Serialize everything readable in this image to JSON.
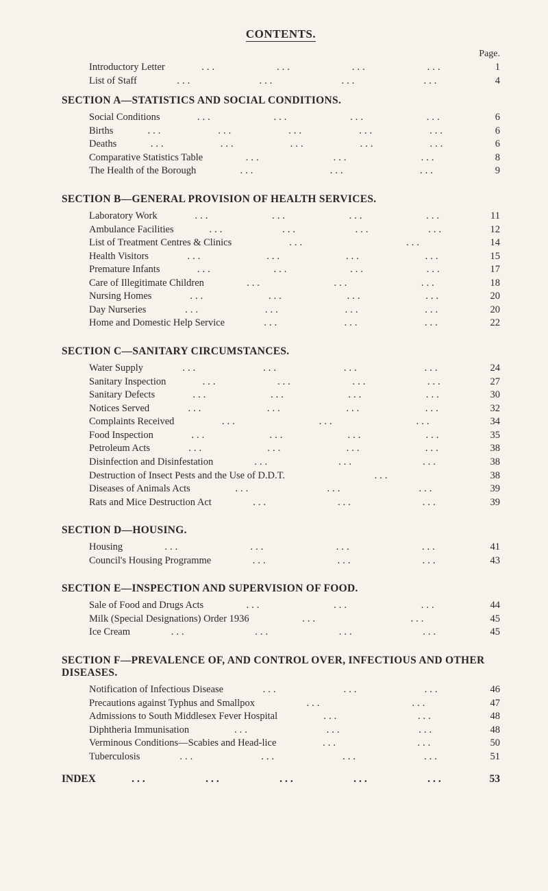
{
  "title": "CONTENTS.",
  "page_header": "Page.",
  "dots3": "...",
  "intro": [
    {
      "label": "Introductory Letter",
      "page": "1",
      "dots": 4
    },
    {
      "label": "List of Staff",
      "page": "4",
      "dots": 4
    }
  ],
  "sections": [
    {
      "heading": "SECTION A—STATISTICS AND SOCIAL CONDITIONS.",
      "items": [
        {
          "label": "Social Conditions",
          "page": "6",
          "dots": 4
        },
        {
          "label": "Births",
          "page": "6",
          "dots": 5
        },
        {
          "label": "Deaths",
          "page": "6",
          "dots": 5
        },
        {
          "label": "Comparative Statistics Table",
          "page": "8",
          "dots": 3
        },
        {
          "label": "The Health of the Borough",
          "page": "9",
          "dots": 3
        }
      ]
    },
    {
      "heading": "SECTION B—GENERAL PROVISION OF HEALTH SERVICES.",
      "items": [
        {
          "label": "Laboratory Work",
          "page": "11",
          "dots": 4
        },
        {
          "label": "Ambulance Facilities",
          "page": "12",
          "dots": 4
        },
        {
          "label": "List of Treatment Centres & Clinics",
          "page": "14",
          "dots": 2
        },
        {
          "label": "Health Visitors",
          "page": "15",
          "dots": 4
        },
        {
          "label": "Premature Infants",
          "page": "17",
          "dots": 4
        },
        {
          "label": "Care of Illegitimate Children",
          "page": "18",
          "dots": 3
        },
        {
          "label": "Nursing Homes",
          "page": "20",
          "dots": 4
        },
        {
          "label": "Day Nurseries",
          "page": "20",
          "dots": 4
        },
        {
          "label": "Home and Domestic Help Service",
          "page": "22",
          "dots": 3
        }
      ]
    },
    {
      "heading": "SECTION C—SANITARY CIRCUMSTANCES.",
      "items": [
        {
          "label": "Water Supply",
          "page": "24",
          "dots": 4
        },
        {
          "label": "Sanitary Inspection",
          "page": "27",
          "dots": 4
        },
        {
          "label": "Sanitary Defects",
          "page": "30",
          "dots": 4
        },
        {
          "label": "Notices Served",
          "page": "32",
          "dots": 4
        },
        {
          "label": "Complaints Received",
          "page": "34",
          "dots": 3
        },
        {
          "label": "Food Inspection",
          "page": "35",
          "dots": 4
        },
        {
          "label": "Petroleum Acts",
          "page": "38",
          "dots": 4
        },
        {
          "label": "Disinfection and Disinfestation",
          "page": "38",
          "dots": 3
        },
        {
          "label": "Destruction of Insect Pests and the Use of D.D.T.",
          "page": "38",
          "dots": 1
        },
        {
          "label": "Diseases of Animals Acts",
          "page": "39",
          "dots": 3
        },
        {
          "label": "Rats and Mice Destruction Act",
          "page": "39",
          "dots": 3
        }
      ]
    },
    {
      "heading": "SECTION D—HOUSING.",
      "items": [
        {
          "label": "Housing",
          "page": "41",
          "dots": 4
        },
        {
          "label": "Council's Housing Programme",
          "page": "43",
          "dots": 3
        }
      ]
    },
    {
      "heading": "SECTION E—INSPECTION AND SUPERVISION OF FOOD.",
      "items": [
        {
          "label": "Sale of Food and Drugs Acts",
          "page": "44",
          "dots": 3
        },
        {
          "label": "Milk (Special Designations) Order 1936",
          "page": "45",
          "dots": 2
        },
        {
          "label": "Ice Cream",
          "page": "45",
          "dots": 4
        }
      ]
    },
    {
      "heading": "SECTION F—PREVALENCE OF, AND CONTROL OVER, INFECTIOUS AND OTHER DISEASES.",
      "items": [
        {
          "label": "Notification of Infectious Disease",
          "page": "46",
          "dots": 3
        },
        {
          "label": "Precautions against Typhus and Smallpox",
          "page": "47",
          "dots": 2
        },
        {
          "label": "Admissions to South Middlesex Fever Hospital",
          "page": "48",
          "dots": 2
        },
        {
          "label": "Diphtheria Immunisation",
          "page": "48",
          "dots": 3
        },
        {
          "label": "Verminous Conditions—Scabies and Head-lice",
          "page": "50",
          "dots": 2
        },
        {
          "label": "Tuberculosis",
          "page": "51",
          "dots": 4
        }
      ]
    }
  ],
  "index": {
    "label": "INDEX",
    "page": "53",
    "dots": 5
  }
}
